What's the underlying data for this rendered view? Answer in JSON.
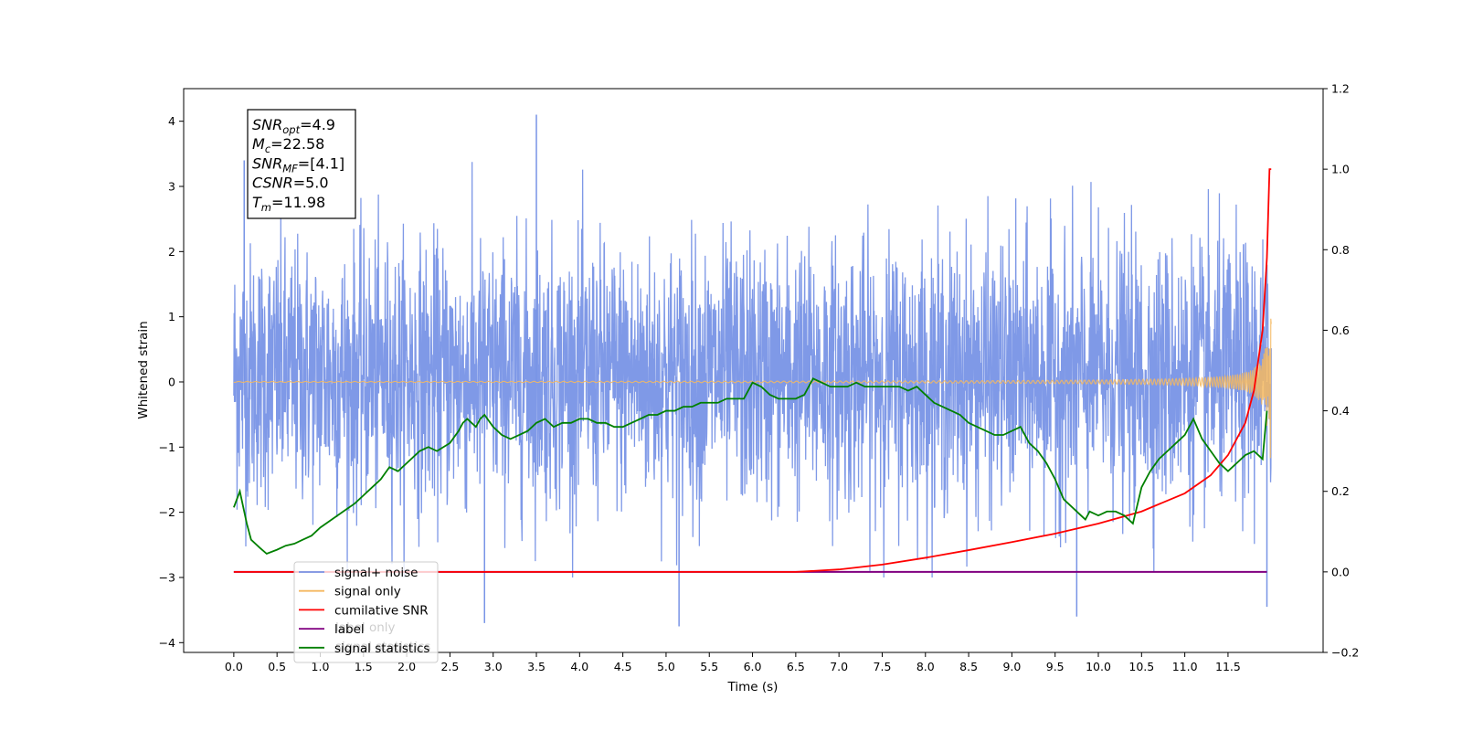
{
  "chart_data": {
    "type": "line",
    "xlabel": "Time (s)",
    "ylabel": "Whitened strain",
    "xlim": [
      -0.58,
      12.6
    ],
    "ylim": [
      -4.15,
      4.5
    ],
    "y2lim": [
      -0.2,
      1.2
    ],
    "grid": false,
    "legend_position": "lower-left",
    "x_ticks": [
      "0.0",
      "0.5",
      "1.0",
      "1.5",
      "2.0",
      "2.5",
      "3.0",
      "3.5",
      "4.0",
      "4.5",
      "5.0",
      "5.5",
      "6.0",
      "6.5",
      "7.0",
      "7.5",
      "8.0",
      "8.5",
      "9.0",
      "9.5",
      "10.0",
      "10.5",
      "11.0",
      "11.5"
    ],
    "y_ticks": [
      "4",
      "3",
      "2",
      "1",
      "0",
      "−1",
      "−2",
      "−3",
      "−4"
    ],
    "y2_ticks": [
      "1.2",
      "1.0",
      "0.8",
      "0.6",
      "0.4",
      "0.2",
      "0.0",
      "−0.2"
    ],
    "annotation": {
      "lines": [
        {
          "main": "SNR",
          "sub": "opt",
          "value": "=4.9"
        },
        {
          "main": "M",
          "sub": "c",
          "value": "=22.58"
        },
        {
          "main": "SNR",
          "sub": "MF",
          "value": "=[4.1]"
        },
        {
          "main": "CSNR",
          "sub": "",
          "value": "=5.0"
        },
        {
          "main": "T",
          "sub": "m",
          "value": "=11.98"
        }
      ]
    },
    "series": [
      {
        "name": "signal+ noise",
        "axis": "left",
        "color": "#7894e6",
        "kind": "noise",
        "x_range": [
          0.0,
          12.0
        ],
        "approx_range": [
          -3.7,
          4.1
        ],
        "spikes": [
          [
            3.5,
            4.1
          ],
          [
            2.9,
            -3.7
          ],
          [
            5.15,
            -3.75
          ],
          [
            9.75,
            -3.6
          ],
          [
            11.95,
            -3.45
          ],
          [
            0.12,
            3.4
          ]
        ]
      },
      {
        "name": "signal only",
        "axis": "left",
        "color": "#f5b860",
        "kind": "chirp",
        "x_range": [
          0.0,
          12.0
        ],
        "peak_amplitude": 1.5
      },
      {
        "name": "cumilative SNR",
        "axis": "right",
        "color": "#ff0000",
        "x": [
          0.0,
          6.5,
          7.0,
          7.5,
          8.0,
          8.5,
          9.0,
          9.5,
          10.0,
          10.5,
          11.0,
          11.3,
          11.5,
          11.7,
          11.8,
          11.9,
          11.95,
          11.98,
          12.0
        ],
        "y": [
          0.0,
          0.0,
          0.006,
          0.018,
          0.035,
          0.054,
          0.074,
          0.095,
          0.12,
          0.15,
          0.195,
          0.24,
          0.29,
          0.37,
          0.45,
          0.6,
          0.78,
          1.0,
          1.0
        ]
      },
      {
        "name": "label",
        "axis": "right",
        "color": "#800080",
        "x": [
          0.0,
          11.95
        ],
        "y": [
          0.0,
          0.0
        ]
      },
      {
        "name": "signal statistics",
        "axis": "right",
        "color": "#008000",
        "x": [
          0.0,
          0.07,
          0.15,
          0.2,
          0.3,
          0.38,
          0.5,
          0.6,
          0.7,
          0.8,
          0.9,
          1.0,
          1.1,
          1.2,
          1.3,
          1.4,
          1.5,
          1.6,
          1.7,
          1.8,
          1.9,
          2.0,
          2.1,
          2.15,
          2.25,
          2.35,
          2.5,
          2.6,
          2.65,
          2.7,
          2.8,
          2.85,
          2.9,
          3.0,
          3.1,
          3.2,
          3.3,
          3.4,
          3.5,
          3.6,
          3.7,
          3.8,
          3.9,
          4.0,
          4.1,
          4.2,
          4.3,
          4.4,
          4.5,
          4.6,
          4.7,
          4.8,
          4.9,
          5.0,
          5.1,
          5.2,
          5.3,
          5.4,
          5.5,
          5.6,
          5.7,
          5.8,
          5.9,
          6.0,
          6.1,
          6.2,
          6.3,
          6.4,
          6.5,
          6.6,
          6.7,
          6.8,
          6.9,
          7.0,
          7.1,
          7.2,
          7.3,
          7.4,
          7.5,
          7.6,
          7.7,
          7.8,
          7.9,
          8.0,
          8.1,
          8.2,
          8.3,
          8.4,
          8.5,
          8.6,
          8.7,
          8.8,
          8.9,
          9.0,
          9.1,
          9.2,
          9.3,
          9.4,
          9.5,
          9.6,
          9.7,
          9.8,
          9.85,
          9.9,
          10.0,
          10.1,
          10.2,
          10.3,
          10.4,
          10.5,
          10.6,
          10.7,
          10.8,
          10.9,
          11.0,
          11.1,
          11.2,
          11.3,
          11.4,
          11.5,
          11.6,
          11.7,
          11.8,
          11.9,
          11.95
        ],
        "y": [
          0.16,
          0.2,
          0.12,
          0.08,
          0.06,
          0.045,
          0.055,
          0.065,
          0.07,
          0.08,
          0.09,
          0.11,
          0.125,
          0.14,
          0.155,
          0.17,
          0.19,
          0.21,
          0.23,
          0.26,
          0.25,
          0.27,
          0.29,
          0.3,
          0.31,
          0.3,
          0.32,
          0.35,
          0.37,
          0.38,
          0.36,
          0.38,
          0.39,
          0.36,
          0.34,
          0.33,
          0.34,
          0.35,
          0.37,
          0.38,
          0.36,
          0.37,
          0.37,
          0.38,
          0.38,
          0.37,
          0.37,
          0.36,
          0.36,
          0.37,
          0.38,
          0.39,
          0.39,
          0.4,
          0.4,
          0.41,
          0.41,
          0.42,
          0.42,
          0.42,
          0.43,
          0.43,
          0.43,
          0.47,
          0.46,
          0.44,
          0.43,
          0.43,
          0.43,
          0.44,
          0.48,
          0.47,
          0.46,
          0.46,
          0.46,
          0.47,
          0.46,
          0.46,
          0.46,
          0.46,
          0.46,
          0.45,
          0.46,
          0.44,
          0.42,
          0.41,
          0.4,
          0.39,
          0.37,
          0.36,
          0.35,
          0.34,
          0.34,
          0.35,
          0.36,
          0.32,
          0.3,
          0.27,
          0.23,
          0.18,
          0.16,
          0.14,
          0.13,
          0.15,
          0.14,
          0.15,
          0.15,
          0.14,
          0.12,
          0.21,
          0.25,
          0.28,
          0.3,
          0.32,
          0.34,
          0.38,
          0.33,
          0.3,
          0.27,
          0.25,
          0.27,
          0.29,
          0.3,
          0.28,
          0.4
        ]
      }
    ],
    "legend_entries": [
      {
        "label": "signal+ noise",
        "color": "#7894e6"
      },
      {
        "label": "signal only",
        "color": "#f5b860"
      },
      {
        "label": "cumilative SNR",
        "color": "#ff0000"
      },
      {
        "label": "label",
        "color": "#800080"
      },
      {
        "label": "signal statistics",
        "color": "#008000"
      }
    ],
    "hidden_legend_text": [
      "label only",
      "signal statistics"
    ]
  }
}
